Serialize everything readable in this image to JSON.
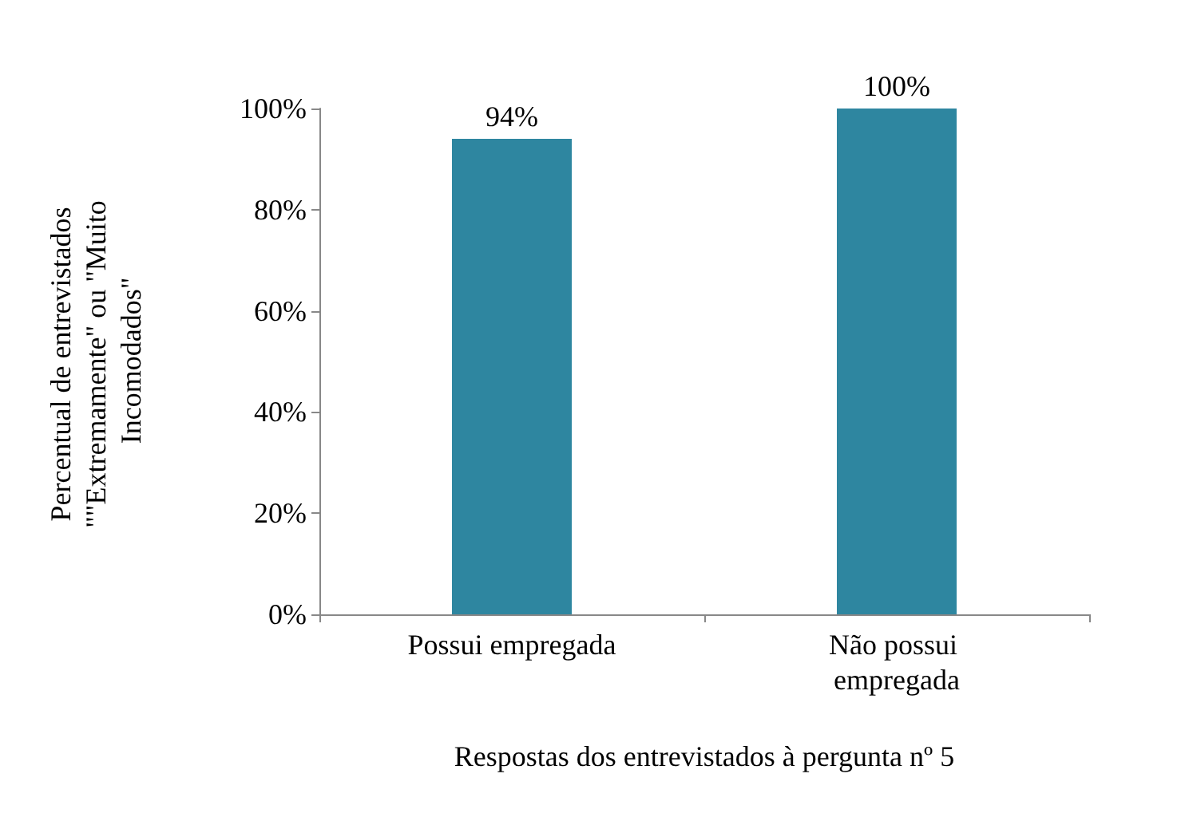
{
  "chart_data": {
    "type": "bar",
    "categories": [
      "Possui empregada",
      "Não possui empregada"
    ],
    "values": [
      94,
      100
    ],
    "color": "#2e86a0",
    "xlabel": "Respostas dos entrevistados à pergunta nº 5",
    "ylabel": "Percentual de entrevistados \"\"Extremamente\" ou \"Muito Incomodados\"",
    "ylim": [
      0,
      100
    ],
    "yticks": [
      {
        "value": 0,
        "label": "0%"
      },
      {
        "value": 20,
        "label": "20%"
      },
      {
        "value": 40,
        "label": "40%"
      },
      {
        "value": 60,
        "label": "60%"
      },
      {
        "value": 80,
        "label": "80%"
      },
      {
        "value": 100,
        "label": "100%"
      }
    ],
    "value_labels": [
      "94%",
      "100%"
    ],
    "grid": false
  }
}
